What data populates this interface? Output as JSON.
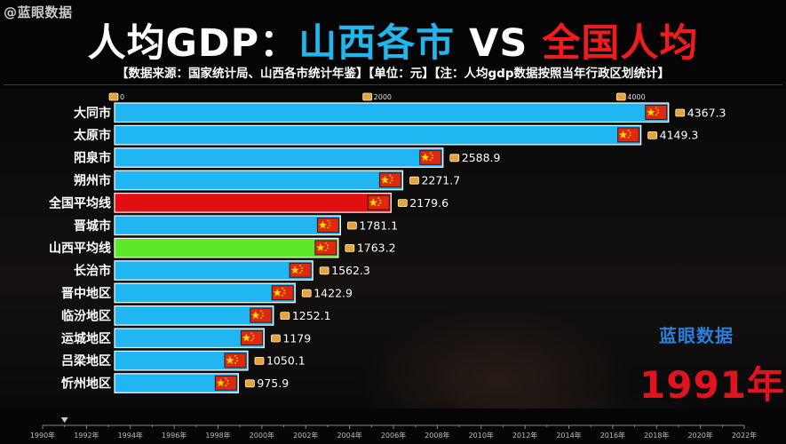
{
  "watermark": "@蓝眼数据",
  "title": {
    "part1": "人均GDP：",
    "part2": "山西各市",
    "part3": " VS ",
    "part4": "全国人均"
  },
  "subtitle": "【数据来源：国家统计局、山西各市统计年鉴】【单位：元】【注：人均gdp数据按照当年行政区划统计】",
  "brand": "蓝眼数据",
  "year_label": "1991年",
  "colors": {
    "default_bar": "#1fb6f2",
    "national_bar": "#e01010",
    "shanxi_bar": "#5ee82a",
    "bar_border": "#ffffff"
  },
  "chart_data": {
    "type": "bar",
    "orientation": "horizontal",
    "categories": [
      "大同市",
      "太原市",
      "阳泉市",
      "朔州市",
      "全国平均线",
      "晋城市",
      "山西平均线",
      "长治市",
      "晋中地区",
      "临汾地区",
      "运城地区",
      "吕梁地区",
      "忻州地区"
    ],
    "values": [
      4367.3,
      4149.3,
      2588.9,
      2271.7,
      2179.6,
      1781.1,
      1763.2,
      1562.3,
      1422.9,
      1252.1,
      1179,
      1050.1,
      975.9
    ],
    "value_labels": [
      "4367.3",
      "4149.3",
      "2588.9",
      "2271.7",
      "2179.6",
      "1781.1",
      "1763.2",
      "1562.3",
      "1422.9",
      "1252.1",
      "1179",
      "1050.1",
      "975.9"
    ],
    "highlight": {
      "全国平均线": "national",
      "山西平均线": "shanxi"
    },
    "xlim": [
      0,
      4600
    ],
    "top_axis_ticks": [
      0,
      2000,
      4000
    ],
    "top_axis_labels": [
      "0",
      "2000",
      "4000"
    ],
    "timeline": {
      "start": 1990,
      "end": 2022,
      "current": 1991,
      "tick_labels": [
        "1990年",
        "1992年",
        "1994年",
        "1996年",
        "1998年",
        "2000年",
        "2002年",
        "2004年",
        "2006年",
        "2008年",
        "2010年",
        "2012年",
        "2014年",
        "2016年",
        "2018年",
        "2020年",
        "2022年"
      ],
      "tick_years": [
        1990,
        1992,
        1994,
        1996,
        1998,
        2000,
        2002,
        2004,
        2006,
        2008,
        2010,
        2012,
        2014,
        2016,
        2018,
        2020,
        2022
      ]
    }
  }
}
